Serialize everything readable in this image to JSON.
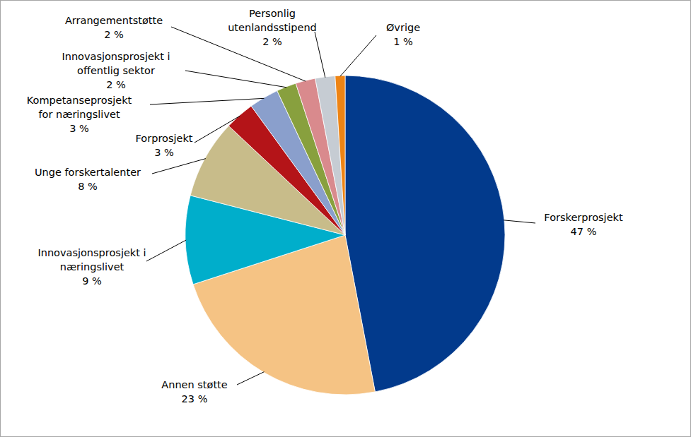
{
  "chart_data": {
    "type": "pie",
    "categories": [
      "Forskerprosjekt",
      "Annen støtte",
      "Innovasjonsprosjekt i næringslivet",
      "Unge forskertalenter",
      "Forprosjekt",
      "Kompetanseprosjekt for næringslivet",
      "Innovasjonsprosjekt i offentlig sektor",
      "Arrangementstøtte",
      "Personlig utenlandsstipend",
      "Øvrige"
    ],
    "values": [
      47,
      23,
      9,
      8,
      3,
      3,
      2,
      2,
      2,
      1
    ],
    "value_labels": [
      "47 %",
      "23 %",
      "9 %",
      "8 %",
      "3 %",
      "3 %",
      "2 %",
      "2 %",
      "2 %",
      "1 %"
    ],
    "colors": [
      "#023a8c",
      "#f5c384",
      "#00aecb",
      "#c8bc8a",
      "#b41418",
      "#8a9fcc",
      "#88a03e",
      "#d98a8d",
      "#c6ccd3",
      "#ee8414"
    ],
    "data_labels": true
  }
}
